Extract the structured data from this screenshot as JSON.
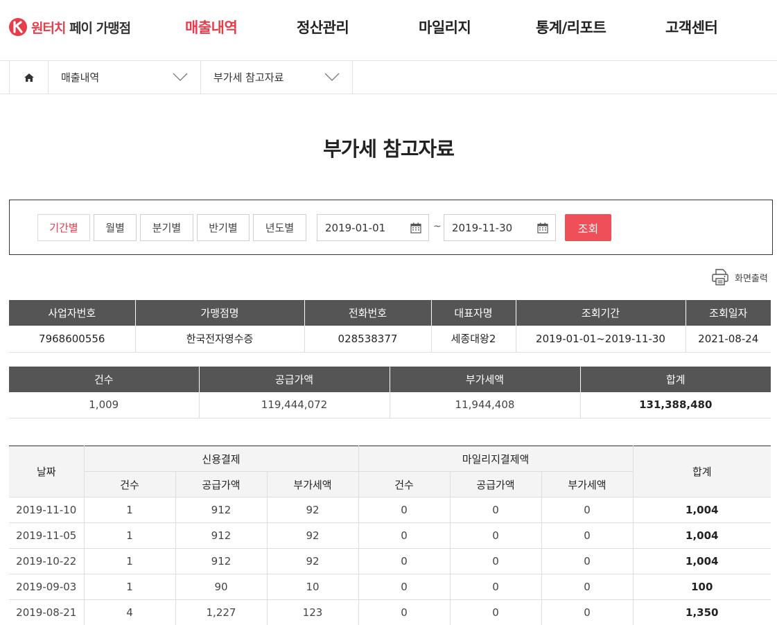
{
  "header": {
    "logo_red": "원터치",
    "logo_dark": " 페이 가맹점",
    "nav": [
      {
        "label": "매출내역",
        "active": true
      },
      {
        "label": "정산관리",
        "active": false
      },
      {
        "label": "마일리지",
        "active": false
      },
      {
        "label": "통계/리포트",
        "active": false
      },
      {
        "label": "고객센터",
        "active": false
      }
    ]
  },
  "breadcrumb": {
    "first": "매출내역",
    "second": "부가세 참고자료"
  },
  "title": "부가세 참고자료",
  "search": {
    "periods": [
      "기간별",
      "월별",
      "분기별",
      "반기별",
      "년도별"
    ],
    "active_period": "기간별",
    "start_date": "2019-01-01",
    "tilde": "~",
    "end_date": "2019-11-30",
    "submit": "조회"
  },
  "print_label": "화면출력",
  "info": {
    "headers": [
      "사업자번호",
      "가맹점명",
      "전화번호",
      "대표자명",
      "조회기간",
      "조회일자"
    ],
    "values": [
      "7968600556",
      "한국전자영수증",
      "028538377",
      "세종대왕2",
      "2019-01-01~2019-11-30",
      "2021-08-24"
    ]
  },
  "summary": {
    "headers": [
      "건수",
      "공급가액",
      "부가세액",
      "합계"
    ],
    "values": [
      "1,009",
      "119,444,072",
      "11,944,408",
      "131,388,480"
    ]
  },
  "detail": {
    "date_header": "날짜",
    "group_credit": "신용결제",
    "group_mileage": "마일리지결제액",
    "total_header": "합계",
    "sub_headers": [
      "건수",
      "공급가액",
      "부가세액",
      "건수",
      "공급가액",
      "부가세액"
    ],
    "rows": [
      [
        "2019-11-10",
        "1",
        "912",
        "92",
        "0",
        "0",
        "0",
        "1,004"
      ],
      [
        "2019-11-05",
        "1",
        "912",
        "92",
        "0",
        "0",
        "0",
        "1,004"
      ],
      [
        "2019-10-22",
        "1",
        "912",
        "92",
        "0",
        "0",
        "0",
        "1,004"
      ],
      [
        "2019-09-03",
        "1",
        "90",
        "10",
        "0",
        "0",
        "0",
        "100"
      ],
      [
        "2019-08-21",
        "4",
        "1,227",
        "123",
        "0",
        "0",
        "0",
        "1,350"
      ]
    ]
  },
  "colors": {
    "accent": "#e73c4a",
    "button": "#ef4f58",
    "header_dark": "#555555"
  }
}
